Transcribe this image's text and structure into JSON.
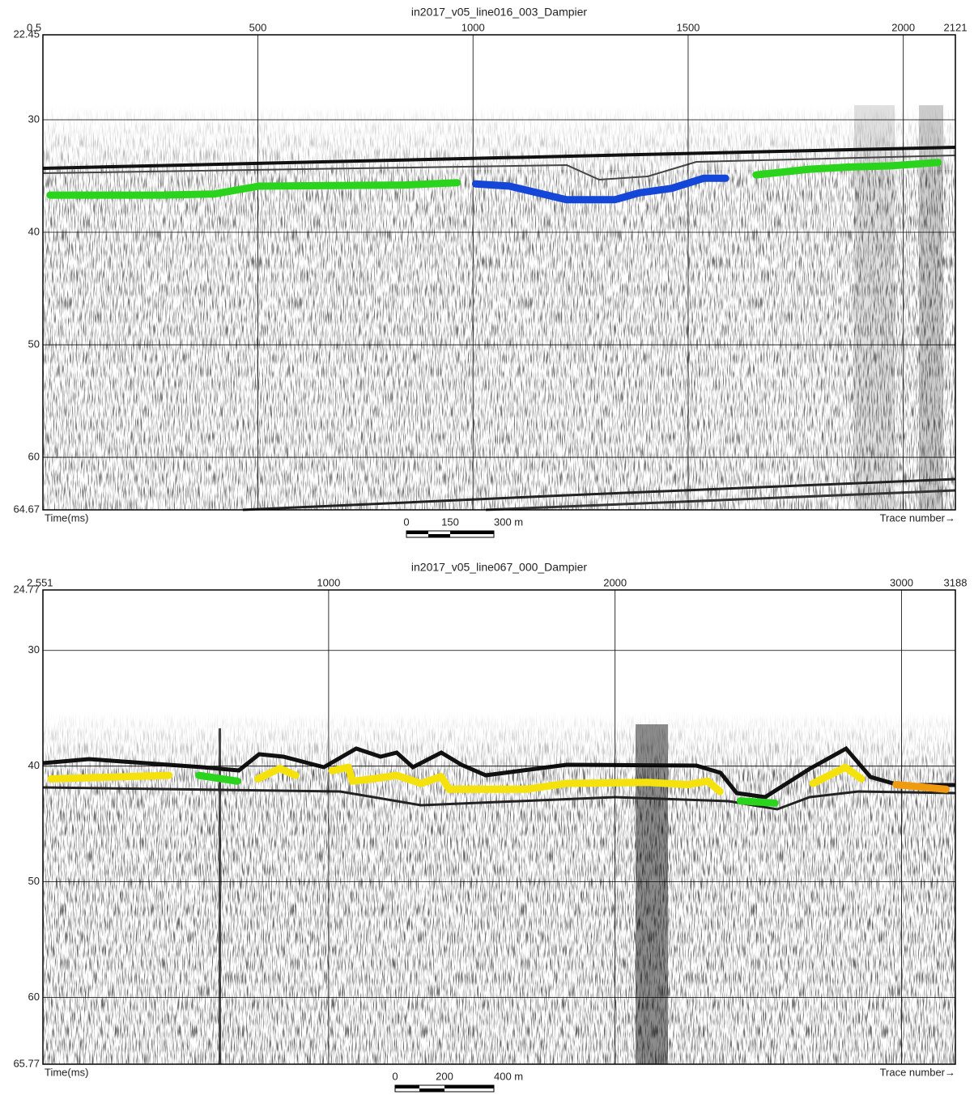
{
  "chart_data": [
    {
      "type": "line",
      "title": "in2017_v05_line016_003_Dampier",
      "x_label": "Trace number→",
      "y_label": "Time(ms)",
      "xlim": [
        0.5,
        2121
      ],
      "ylim": [
        22.45,
        64.67
      ],
      "xticks": [
        0.5,
        500,
        1000,
        1500,
        2000,
        2121
      ],
      "yticks": [
        22.45,
        30,
        40,
        50,
        60,
        64.67
      ],
      "y_inverted": true,
      "grid": true,
      "scale_labels": [
        "0",
        "150",
        "300 m"
      ],
      "series": [
        {
          "color": "#2bd41c",
          "x": [
            17,
            277,
            399,
            502,
            841,
            963
          ],
          "values": [
            36.7,
            36.7,
            36.6,
            35.9,
            35.8,
            35.6
          ]
        },
        {
          "color": "#1446d8",
          "x": [
            1006,
            1085,
            1217,
            1330,
            1386,
            1461,
            1536,
            1587
          ],
          "values": [
            35.7,
            35.9,
            37.1,
            37.1,
            36.5,
            36.1,
            35.2,
            35.2
          ]
        },
        {
          "color": "#2bd41c",
          "x": [
            1658,
            1781,
            1875,
            1968,
            2081
          ],
          "values": [
            34.9,
            34.4,
            34.2,
            34.1,
            33.8
          ]
        }
      ]
    },
    {
      "type": "line",
      "title": "in2017_v05_line067_000_Dampier",
      "x_label": "Trace number→",
      "y_label": "Time(ms)",
      "xlim": [
        2.551,
        3188
      ],
      "ylim": [
        24.77,
        65.77
      ],
      "xticks": [
        2.551,
        1000,
        2000,
        3000,
        3188
      ],
      "yticks": [
        24.77,
        30,
        40,
        50,
        60,
        65.77
      ],
      "y_inverted": true,
      "grid": true,
      "scale_labels": [
        "0",
        "200",
        "400 m"
      ],
      "series": [
        {
          "color": "#f5e20c",
          "x": [
            31,
            443,
            null,
            753,
            829,
            885,
            null,
            1012,
            1069,
            1083,
            1154,
            1238,
            1323,
            1393,
            1421,
            1689,
            1830,
            2112,
            2253,
            2324,
            2366,
            null,
            2691,
            2804,
            2860
          ],
          "values": [
            41.1,
            40.8,
            null,
            41.1,
            40.2,
            40.8,
            null,
            40.4,
            40.1,
            41.3,
            41.1,
            40.8,
            41.5,
            40.9,
            42.0,
            42.0,
            41.5,
            41.4,
            41.6,
            41.3,
            42.2,
            null,
            41.5,
            40.1,
            41.1
          ]
        },
        {
          "color": "#2bd41c",
          "x": [
            547,
            682,
            null,
            2437,
            2558
          ],
          "values": [
            40.8,
            41.3,
            null,
            43.0,
            43.2
          ]
        },
        {
          "color": "#f09a10",
          "x": [
            2981,
            3156
          ],
          "values": [
            41.6,
            42.0
          ]
        }
      ]
    }
  ]
}
